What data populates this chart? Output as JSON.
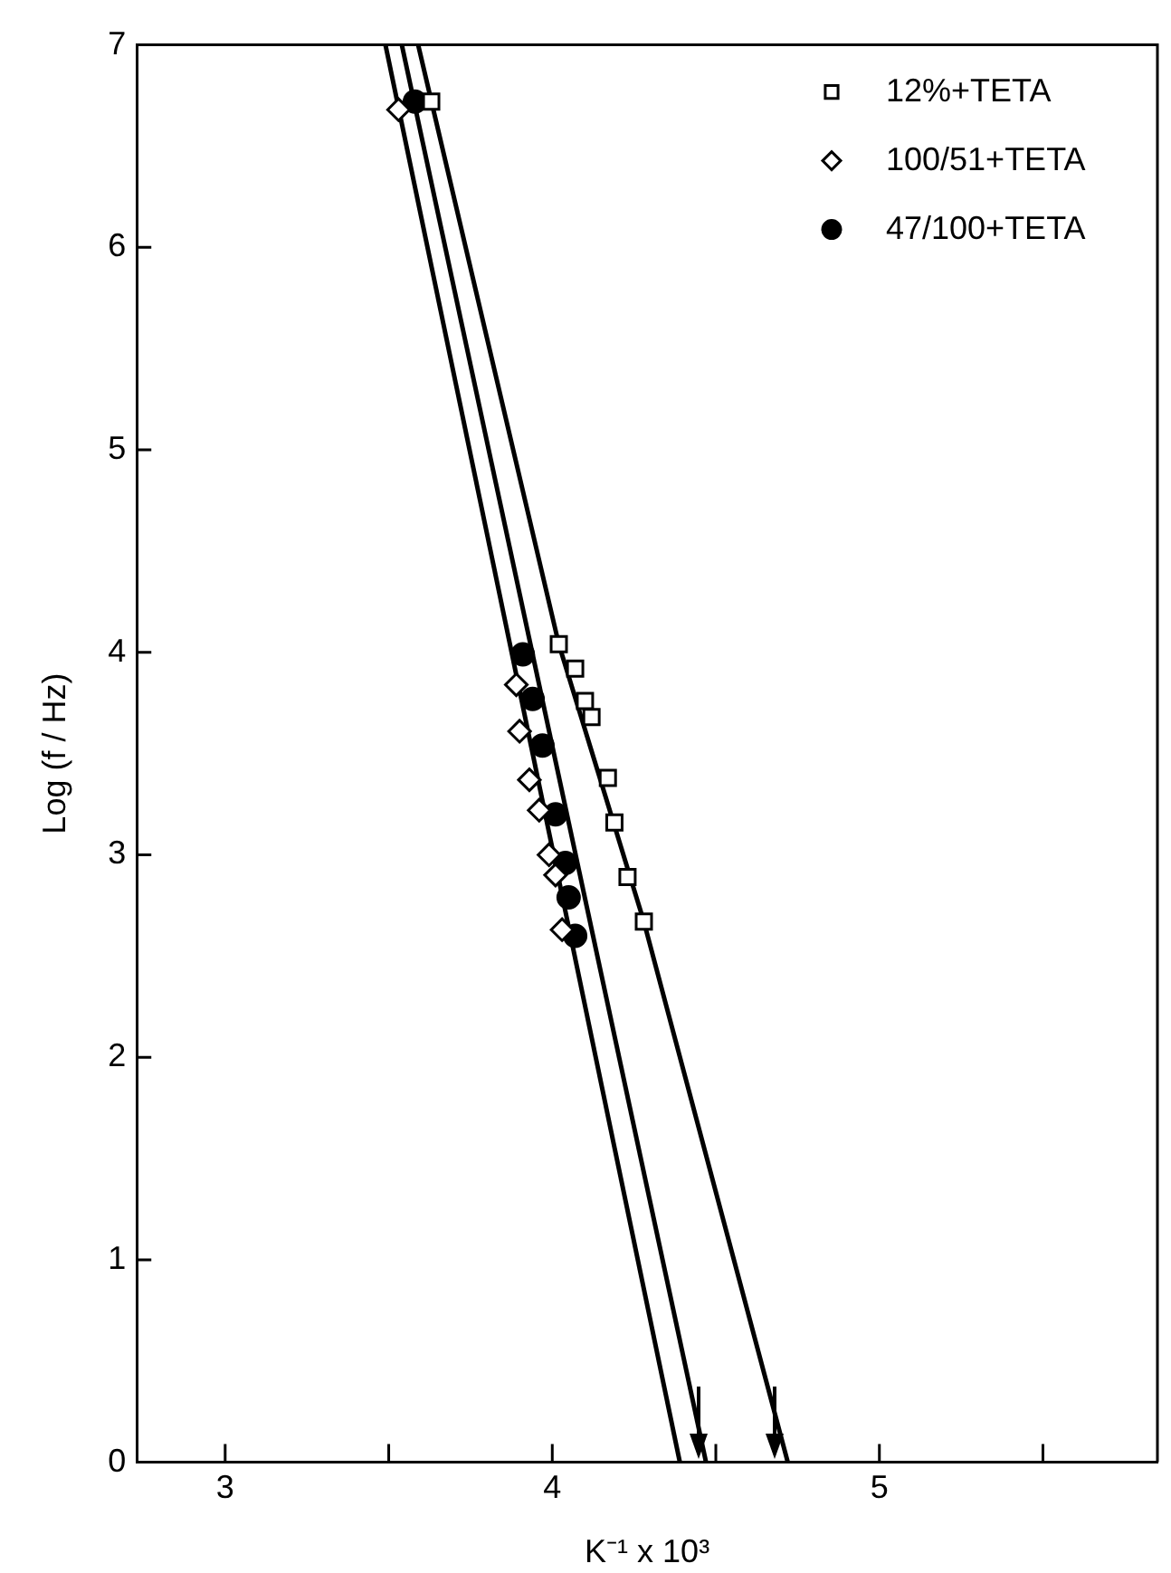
{
  "chart_data": {
    "type": "scatter",
    "xlabel": "K⁻¹ x 10³",
    "ylabel": "Log (f / Hz)",
    "xlim": [
      2.73,
      5.85
    ],
    "xticks": [
      3,
      {
        "value": 3.5,
        "label": null
      },
      4,
      {
        "value": 4.5,
        "label": null
      },
      5,
      {
        "value": 5.5,
        "label": null
      }
    ],
    "ylim": [
      0,
      7
    ],
    "yticks": [
      0,
      1,
      2,
      3,
      4,
      5,
      6,
      7
    ],
    "grid": false,
    "legend": "top right",
    "series": [
      {
        "name": "12%+TETA",
        "type": "scatter",
        "marker": "square",
        "color": "#000000",
        "x": [
          3.63,
          4.02,
          4.07,
          4.1,
          4.12,
          4.17,
          4.19,
          4.23,
          4.28
        ],
        "values": [
          6.72,
          4.04,
          3.92,
          3.76,
          3.68,
          3.38,
          3.16,
          2.89,
          2.67
        ]
      },
      {
        "name": "100/51+TETA",
        "type": "scatter",
        "marker": "diamond",
        "color": "#000000",
        "x": [
          3.53,
          3.89,
          3.9,
          3.93,
          3.96,
          3.99,
          4.01,
          4.03
        ],
        "values": [
          6.68,
          3.84,
          3.61,
          3.37,
          3.22,
          3.0,
          2.9,
          2.63
        ]
      },
      {
        "name": "47/100+TETA",
        "type": "scatter",
        "marker": "circle",
        "color": "#000000",
        "x": [
          3.58,
          3.91,
          3.94,
          3.97,
          4.01,
          4.04,
          4.05,
          4.07
        ],
        "values": [
          6.72,
          3.99,
          3.77,
          3.54,
          3.2,
          2.96,
          2.79,
          2.6
        ]
      },
      {
        "type": "line",
        "marker": "none",
        "color": "#000000",
        "x": [
          3.49,
          4.39
        ],
        "values": [
          7,
          0
        ]
      },
      {
        "type": "line",
        "marker": "none",
        "color": "#000000",
        "x": [
          3.54,
          4.47
        ],
        "values": [
          7,
          0
        ]
      },
      {
        "type": "line",
        "marker": "none",
        "color": "#000000",
        "x": [
          3.59,
          4.02,
          4.28,
          4.72
        ],
        "values": [
          7,
          4.04,
          2.67,
          0
        ]
      }
    ]
  }
}
